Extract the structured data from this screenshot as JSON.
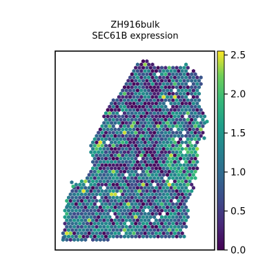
{
  "chart_data": {
    "type": "scatter",
    "title": "ZH916bulk",
    "subtitle": "SEC61B expression",
    "xlabel": "",
    "ylabel": "",
    "colorbar": {
      "colormap": "viridis",
      "min": 0.0,
      "max": 2.55,
      "ticks": [
        0.0,
        0.5,
        1.0,
        1.5,
        2.0,
        2.5
      ],
      "tick_labels": [
        "0.0",
        "0.5",
        "1.0",
        "1.5",
        "2.0",
        "2.5"
      ]
    },
    "axes_visible": false,
    "grid": false,
    "marker": "hexagon",
    "points_description_is_not_printed": true,
    "x": [],
    "y": [],
    "values": []
  }
}
